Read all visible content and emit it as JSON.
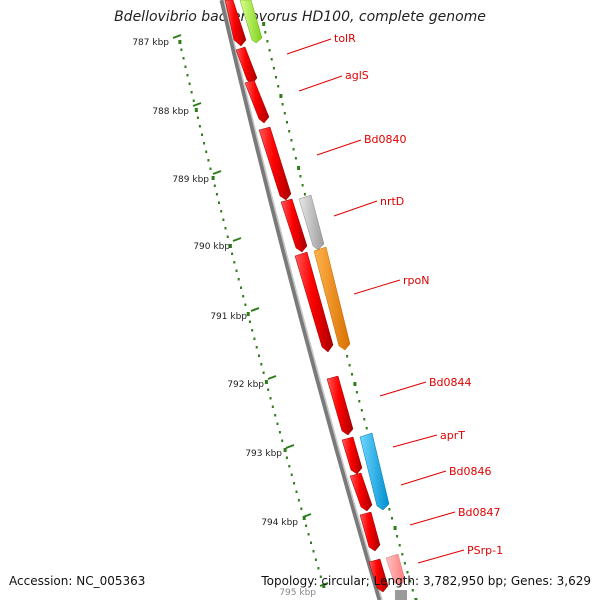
{
  "title": "Bdellovibrio bacteriovorus HD100, complete genome",
  "footer": {
    "accession": "Accession: NC_005363",
    "summary": "Topology: circular; Length: 3,782,950 bp; Genes: 3,629"
  },
  "scale": {
    "ticks": [
      "787 kbp",
      "788 kbp",
      "789 kbp",
      "790 kbp",
      "791 kbp",
      "792 kbp",
      "793 kbp",
      "794 kbp",
      "795 kbp"
    ]
  },
  "genes": [
    {
      "label": "tolR",
      "color": "#ff0000"
    },
    {
      "label": "aglS",
      "color": "#ff0000"
    },
    {
      "label": "Bd0840",
      "color": "#ff0000"
    },
    {
      "label": "nrtD",
      "color": "#bdbdbd"
    },
    {
      "label": "rpoN",
      "color": "#ff8c00"
    },
    {
      "label": "Bd0844",
      "color": "#ff0000"
    },
    {
      "label": "aprT",
      "color": "#1ab2ff"
    },
    {
      "label": "Bd0846",
      "color": "#ff0000"
    },
    {
      "label": "Bd0847",
      "color": "#ff0000"
    },
    {
      "label": "PSrp-1",
      "color": "#ff9a9a"
    }
  ],
  "colors": {
    "label": "#e00000",
    "tick": "#2e7d1a",
    "backbone": "#808080",
    "green_feature": "#99ee33"
  }
}
